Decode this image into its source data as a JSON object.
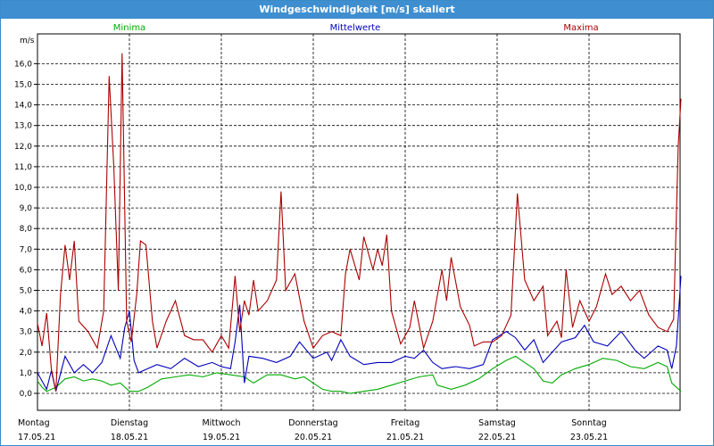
{
  "window": {
    "title": "Windgeschwindigkeit [m/s] skaliert"
  },
  "chart_data": {
    "type": "line",
    "title": "Windgeschwindigkeit [m/s] skaliert",
    "ylabel": "m/s",
    "ylim": [
      0,
      17
    ],
    "yticks": [
      "0,0",
      "1,0",
      "2,0",
      "3,0",
      "4,0",
      "5,0",
      "6,0",
      "7,0",
      "8,0",
      "9,0",
      "10,0",
      "11,0",
      "12,0",
      "13,0",
      "14,0",
      "15,0",
      "16,0"
    ],
    "xlim": [
      0,
      7
    ],
    "day_labels": [
      {
        "day": "Montag",
        "date": "17.05.21"
      },
      {
        "day": "Dienstag",
        "date": "18.05.21"
      },
      {
        "day": "Mittwoch",
        "date": "19.05.21"
      },
      {
        "day": "Donnerstag",
        "date": "20.05.21"
      },
      {
        "day": "Freitag",
        "date": "21.05.21"
      },
      {
        "day": "Samstag",
        "date": "22.05.21"
      },
      {
        "day": "Sonntag",
        "date": "23.05.21"
      }
    ],
    "grid": true,
    "legend_position": "top",
    "series": [
      {
        "name": "Minima",
        "color": "#00aa00",
        "points": [
          [
            0,
            0.6
          ],
          [
            0.05,
            0.3
          ],
          [
            0.1,
            0.1
          ],
          [
            0.2,
            0.3
          ],
          [
            0.3,
            0.7
          ],
          [
            0.4,
            0.8
          ],
          [
            0.5,
            0.6
          ],
          [
            0.6,
            0.7
          ],
          [
            0.7,
            0.6
          ],
          [
            0.8,
            0.4
          ],
          [
            0.9,
            0.5
          ],
          [
            1.0,
            0.1
          ],
          [
            1.1,
            0.1
          ],
          [
            1.2,
            0.3
          ],
          [
            1.35,
            0.7
          ],
          [
            1.5,
            0.8
          ],
          [
            1.65,
            0.9
          ],
          [
            1.8,
            0.8
          ],
          [
            1.95,
            1.0
          ],
          [
            2.1,
            0.9
          ],
          [
            2.25,
            0.8
          ],
          [
            2.35,
            0.5
          ],
          [
            2.5,
            0.9
          ],
          [
            2.65,
            0.9
          ],
          [
            2.8,
            0.7
          ],
          [
            2.9,
            0.8
          ],
          [
            3.0,
            0.5
          ],
          [
            3.1,
            0.2
          ],
          [
            3.2,
            0.1
          ],
          [
            3.3,
            0.1
          ],
          [
            3.4,
            0.0
          ],
          [
            3.55,
            0.1
          ],
          [
            3.7,
            0.2
          ],
          [
            3.85,
            0.4
          ],
          [
            4.0,
            0.6
          ],
          [
            4.15,
            0.8
          ],
          [
            4.3,
            0.9
          ],
          [
            4.35,
            0.4
          ],
          [
            4.5,
            0.2
          ],
          [
            4.65,
            0.4
          ],
          [
            4.8,
            0.7
          ],
          [
            4.95,
            1.2
          ],
          [
            5.1,
            1.6
          ],
          [
            5.2,
            1.8
          ],
          [
            5.3,
            1.5
          ],
          [
            5.4,
            1.2
          ],
          [
            5.5,
            0.6
          ],
          [
            5.6,
            0.5
          ],
          [
            5.7,
            0.9
          ],
          [
            5.85,
            1.2
          ],
          [
            6.0,
            1.4
          ],
          [
            6.15,
            1.7
          ],
          [
            6.3,
            1.6
          ],
          [
            6.45,
            1.3
          ],
          [
            6.6,
            1.2
          ],
          [
            6.75,
            1.5
          ],
          [
            6.85,
            1.3
          ],
          [
            6.9,
            0.5
          ],
          [
            7.0,
            0.1
          ]
        ]
      },
      {
        "name": "Mittelwerte",
        "color": "#0000bb",
        "points": [
          [
            0,
            1.0
          ],
          [
            0.05,
            0.6
          ],
          [
            0.1,
            0.2
          ],
          [
            0.15,
            1.1
          ],
          [
            0.2,
            0.1
          ],
          [
            0.3,
            1.8
          ],
          [
            0.4,
            1.0
          ],
          [
            0.5,
            1.4
          ],
          [
            0.6,
            1.0
          ],
          [
            0.7,
            1.5
          ],
          [
            0.8,
            2.8
          ],
          [
            0.9,
            1.7
          ],
          [
            0.95,
            3.2
          ],
          [
            1.0,
            4.0
          ],
          [
            1.05,
            1.6
          ],
          [
            1.1,
            1.0
          ],
          [
            1.2,
            1.2
          ],
          [
            1.3,
            1.4
          ],
          [
            1.45,
            1.2
          ],
          [
            1.6,
            1.7
          ],
          [
            1.75,
            1.3
          ],
          [
            1.9,
            1.5
          ],
          [
            2.0,
            1.3
          ],
          [
            2.1,
            1.2
          ],
          [
            2.15,
            2.5
          ],
          [
            2.2,
            4.3
          ],
          [
            2.25,
            0.5
          ],
          [
            2.3,
            1.8
          ],
          [
            2.45,
            1.7
          ],
          [
            2.6,
            1.5
          ],
          [
            2.75,
            1.8
          ],
          [
            2.85,
            2.5
          ],
          [
            3.0,
            1.7
          ],
          [
            3.15,
            2.0
          ],
          [
            3.2,
            1.6
          ],
          [
            3.3,
            2.6
          ],
          [
            3.4,
            1.8
          ],
          [
            3.55,
            1.4
          ],
          [
            3.7,
            1.5
          ],
          [
            3.85,
            1.5
          ],
          [
            4.0,
            1.8
          ],
          [
            4.1,
            1.7
          ],
          [
            4.2,
            2.1
          ],
          [
            4.3,
            1.5
          ],
          [
            4.4,
            1.2
          ],
          [
            4.55,
            1.3
          ],
          [
            4.7,
            1.2
          ],
          [
            4.85,
            1.4
          ],
          [
            4.95,
            2.6
          ],
          [
            5.1,
            3.0
          ],
          [
            5.2,
            2.7
          ],
          [
            5.3,
            2.1
          ],
          [
            5.4,
            2.6
          ],
          [
            5.5,
            1.5
          ],
          [
            5.6,
            2.0
          ],
          [
            5.7,
            2.5
          ],
          [
            5.85,
            2.7
          ],
          [
            5.95,
            3.3
          ],
          [
            6.05,
            2.5
          ],
          [
            6.2,
            2.3
          ],
          [
            6.35,
            3.0
          ],
          [
            6.5,
            2.1
          ],
          [
            6.6,
            1.7
          ],
          [
            6.75,
            2.3
          ],
          [
            6.85,
            2.1
          ],
          [
            6.9,
            1.2
          ],
          [
            6.95,
            2.3
          ],
          [
            7.0,
            5.7
          ]
        ]
      },
      {
        "name": "Maxima",
        "color": "#aa0000",
        "points": [
          [
            0,
            3.4
          ],
          [
            0.05,
            2.3
          ],
          [
            0.1,
            3.9
          ],
          [
            0.15,
            1.2
          ],
          [
            0.2,
            0.1
          ],
          [
            0.25,
            4.8
          ],
          [
            0.3,
            7.2
          ],
          [
            0.35,
            5.5
          ],
          [
            0.4,
            7.4
          ],
          [
            0.45,
            3.5
          ],
          [
            0.55,
            3.0
          ],
          [
            0.65,
            2.2
          ],
          [
            0.72,
            4.0
          ],
          [
            0.78,
            15.4
          ],
          [
            0.83,
            11.0
          ],
          [
            0.88,
            5.0
          ],
          [
            0.92,
            16.5
          ],
          [
            0.97,
            3.5
          ],
          [
            1.02,
            2.5
          ],
          [
            1.08,
            4.8
          ],
          [
            1.12,
            7.4
          ],
          [
            1.18,
            7.2
          ],
          [
            1.25,
            3.5
          ],
          [
            1.3,
            2.2
          ],
          [
            1.4,
            3.5
          ],
          [
            1.5,
            4.5
          ],
          [
            1.6,
            2.8
          ],
          [
            1.7,
            2.6
          ],
          [
            1.8,
            2.6
          ],
          [
            1.9,
            2.0
          ],
          [
            2.0,
            2.8
          ],
          [
            2.08,
            2.2
          ],
          [
            2.15,
            5.7
          ],
          [
            2.2,
            3.0
          ],
          [
            2.25,
            4.5
          ],
          [
            2.3,
            3.8
          ],
          [
            2.35,
            5.5
          ],
          [
            2.4,
            4.0
          ],
          [
            2.5,
            4.5
          ],
          [
            2.6,
            5.5
          ],
          [
            2.65,
            9.8
          ],
          [
            2.7,
            5.0
          ],
          [
            2.8,
            5.8
          ],
          [
            2.9,
            3.5
          ],
          [
            3.0,
            2.2
          ],
          [
            3.1,
            2.8
          ],
          [
            3.2,
            3.0
          ],
          [
            3.3,
            2.8
          ],
          [
            3.35,
            5.8
          ],
          [
            3.4,
            7.0
          ],
          [
            3.5,
            5.5
          ],
          [
            3.55,
            7.6
          ],
          [
            3.65,
            6.0
          ],
          [
            3.7,
            7.0
          ],
          [
            3.75,
            6.2
          ],
          [
            3.8,
            7.7
          ],
          [
            3.85,
            4.0
          ],
          [
            3.95,
            2.4
          ],
          [
            4.05,
            3.2
          ],
          [
            4.1,
            4.5
          ],
          [
            4.2,
            2.2
          ],
          [
            4.3,
            3.5
          ],
          [
            4.4,
            6.0
          ],
          [
            4.45,
            4.5
          ],
          [
            4.5,
            6.6
          ],
          [
            4.6,
            4.2
          ],
          [
            4.7,
            3.3
          ],
          [
            4.75,
            2.3
          ],
          [
            4.85,
            2.5
          ],
          [
            4.95,
            2.5
          ],
          [
            5.05,
            2.8
          ],
          [
            5.15,
            3.8
          ],
          [
            5.22,
            9.7
          ],
          [
            5.3,
            5.5
          ],
          [
            5.4,
            4.5
          ],
          [
            5.5,
            5.2
          ],
          [
            5.55,
            2.8
          ],
          [
            5.65,
            3.5
          ],
          [
            5.7,
            2.7
          ],
          [
            5.75,
            6.0
          ],
          [
            5.82,
            3.2
          ],
          [
            5.9,
            4.5
          ],
          [
            6.0,
            3.5
          ],
          [
            6.08,
            4.2
          ],
          [
            6.18,
            5.8
          ],
          [
            6.25,
            4.8
          ],
          [
            6.35,
            5.2
          ],
          [
            6.45,
            4.5
          ],
          [
            6.55,
            5.0
          ],
          [
            6.65,
            3.8
          ],
          [
            6.75,
            3.2
          ],
          [
            6.85,
            3.0
          ],
          [
            6.92,
            3.6
          ],
          [
            6.97,
            12.0
          ],
          [
            7.0,
            14.3
          ]
        ]
      }
    ]
  }
}
